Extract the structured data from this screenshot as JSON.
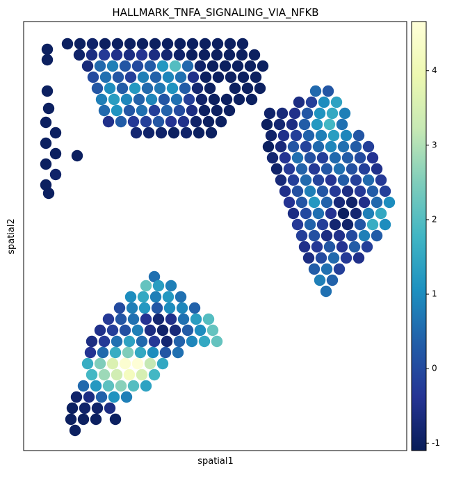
{
  "chart_data": {
    "type": "scatter",
    "title": "HALLMARK_TNFA_SIGNALING_VIA_NFKB",
    "x_label": "spatial1",
    "y_label": "spatial2",
    "xlim": [
      0,
      551
    ],
    "ylim": [
      617,
      0
    ],
    "x": [
      34,
      34,
      34,
      36,
      32,
      46,
      32,
      46,
      77,
      32,
      46,
      32,
      36,
      63,
      81,
      99,
      117,
      135,
      153,
      171,
      189,
      207,
      225,
      243,
      261,
      279,
      297,
      315,
      80,
      98,
      116,
      134,
      152,
      170,
      188,
      206,
      224,
      242,
      260,
      278,
      296,
      314,
      332,
      92,
      110,
      128,
      146,
      164,
      182,
      200,
      218,
      236,
      254,
      272,
      290,
      308,
      326,
      344,
      100,
      118,
      136,
      154,
      172,
      190,
      208,
      226,
      244,
      262,
      280,
      298,
      316,
      334,
      106,
      124,
      142,
      160,
      178,
      196,
      214,
      232,
      250,
      268,
      304,
      322,
      340,
      112,
      130,
      148,
      166,
      184,
      202,
      220,
      238,
      256,
      274,
      292,
      310,
      328,
      116,
      134,
      152,
      170,
      188,
      206,
      224,
      242,
      260,
      278,
      296,
      122,
      140,
      158,
      176,
      194,
      212,
      230,
      248,
      266,
      284,
      162,
      180,
      198,
      216,
      234,
      252,
      270,
      420,
      438,
      396,
      414,
      432,
      450,
      354,
      372,
      390,
      408,
      426,
      444,
      462,
      350,
      368,
      386,
      404,
      422,
      440,
      458,
      356,
      374,
      392,
      410,
      428,
      446,
      464,
      482,
      352,
      370,
      388,
      406,
      424,
      442,
      460,
      478,
      496,
      358,
      376,
      394,
      412,
      430,
      448,
      466,
      484,
      502,
      364,
      382,
      400,
      418,
      436,
      454,
      472,
      490,
      508,
      370,
      388,
      406,
      424,
      442,
      460,
      478,
      496,
      514,
      376,
      394,
      412,
      430,
      448,
      466,
      484,
      502,
      520,
      382,
      400,
      418,
      436,
      454,
      472,
      490,
      508,
      526,
      388,
      406,
      424,
      442,
      460,
      478,
      496,
      514,
      394,
      412,
      430,
      448,
      466,
      484,
      502,
      520,
      400,
      418,
      436,
      454,
      472,
      490,
      508,
      404,
      422,
      440,
      458,
      476,
      494,
      410,
      428,
      446,
      464,
      482,
      418,
      436,
      454,
      426,
      444,
      435,
      188,
      176,
      194,
      212,
      154,
      172,
      190,
      208,
      226,
      138,
      156,
      174,
      192,
      210,
      228,
      246,
      122,
      140,
      158,
      176,
      194,
      212,
      230,
      248,
      266,
      110,
      128,
      146,
      164,
      182,
      200,
      218,
      236,
      254,
      272,
      98,
      116,
      134,
      152,
      170,
      188,
      206,
      224,
      242,
      260,
      278,
      96,
      114,
      132,
      150,
      168,
      186,
      204,
      222,
      92,
      110,
      128,
      146,
      164,
      182,
      200,
      98,
      116,
      134,
      152,
      170,
      188,
      86,
      104,
      122,
      140,
      158,
      176,
      76,
      94,
      112,
      130,
      148,
      70,
      88,
      106,
      124,
      68,
      86,
      104,
      132,
      74
    ],
    "y": [
      40,
      55,
      100,
      125,
      145,
      160,
      175,
      190,
      193,
      205,
      220,
      235,
      247,
      32,
      32,
      32,
      32,
      32,
      32,
      32,
      32,
      32,
      32,
      32,
      32,
      32,
      32,
      32,
      48,
      48,
      48,
      48,
      48,
      48,
      48,
      48,
      48,
      48,
      48,
      48,
      48,
      48,
      48,
      64,
      64,
      64,
      64,
      64,
      64,
      64,
      64,
      64,
      64,
      64,
      64,
      64,
      64,
      64,
      80,
      80,
      80,
      80,
      80,
      80,
      80,
      80,
      80,
      80,
      80,
      80,
      80,
      80,
      96,
      96,
      96,
      96,
      96,
      96,
      96,
      96,
      96,
      96,
      96,
      96,
      96,
      112,
      112,
      112,
      112,
      112,
      112,
      112,
      112,
      112,
      112,
      112,
      112,
      112,
      128,
      128,
      128,
      128,
      128,
      128,
      128,
      128,
      128,
      128,
      128,
      144,
      144,
      144,
      144,
      144,
      144,
      144,
      144,
      144,
      144,
      160,
      160,
      160,
      160,
      160,
      160,
      160,
      100,
      100,
      116,
      116,
      116,
      116,
      132,
      132,
      132,
      132,
      132,
      132,
      132,
      148,
      148,
      148,
      148,
      148,
      148,
      148,
      164,
      164,
      164,
      164,
      164,
      164,
      164,
      164,
      180,
      180,
      180,
      180,
      180,
      180,
      180,
      180,
      180,
      196,
      196,
      196,
      196,
      196,
      196,
      196,
      196,
      196,
      212,
      212,
      212,
      212,
      212,
      212,
      212,
      212,
      212,
      228,
      228,
      228,
      228,
      228,
      228,
      228,
      228,
      228,
      244,
      244,
      244,
      244,
      244,
      244,
      244,
      244,
      244,
      260,
      260,
      260,
      260,
      260,
      260,
      260,
      260,
      260,
      276,
      276,
      276,
      276,
      276,
      276,
      276,
      276,
      292,
      292,
      292,
      292,
      292,
      292,
      292,
      292,
      308,
      308,
      308,
      308,
      308,
      308,
      308,
      324,
      324,
      324,
      324,
      324,
      324,
      340,
      340,
      340,
      340,
      340,
      356,
      356,
      356,
      372,
      372,
      388,
      367,
      380,
      380,
      380,
      396,
      396,
      396,
      396,
      396,
      412,
      412,
      412,
      412,
      412,
      412,
      412,
      428,
      428,
      428,
      428,
      428,
      428,
      428,
      428,
      428,
      444,
      444,
      444,
      444,
      444,
      444,
      444,
      444,
      444,
      444,
      460,
      460,
      460,
      460,
      460,
      460,
      460,
      460,
      460,
      460,
      460,
      476,
      476,
      476,
      476,
      476,
      476,
      476,
      476,
      492,
      492,
      492,
      492,
      492,
      492,
      492,
      508,
      508,
      508,
      508,
      508,
      508,
      524,
      524,
      524,
      524,
      524,
      524,
      540,
      540,
      540,
      540,
      540,
      556,
      556,
      556,
      556,
      572,
      572,
      572,
      572,
      588
    ],
    "values": [
      -1,
      -1,
      -1,
      -1,
      -1,
      -1,
      -1,
      -1,
      -1,
      -1,
      -0.9,
      -1,
      -1,
      -1,
      -1,
      -0.9,
      -1,
      -1,
      -1,
      -1,
      -1,
      -1,
      -1,
      -1,
      -1,
      -1,
      -1,
      -1,
      -0.9,
      -0.6,
      -0.3,
      -0.5,
      -0.6,
      -0.4,
      -0.6,
      -0.8,
      -0.9,
      -1,
      -1,
      -1,
      -1,
      -1,
      -1,
      -0.7,
      0.5,
      0.8,
      0.2,
      0,
      0.3,
      1.2,
      2,
      0.5,
      -0.9,
      -1,
      -1,
      -1,
      -1,
      -1,
      0,
      0.6,
      0.2,
      -0.2,
      0.8,
      0.4,
      0.9,
      0.6,
      -0.5,
      -1,
      -1,
      -1,
      -1,
      -1,
      0.2,
      1,
      0.3,
      1.2,
      0.5,
      0.7,
      1.1,
      0.3,
      -0.8,
      -1,
      -1,
      -1,
      -1,
      0.8,
      1.3,
      0.9,
      0.4,
      0.9,
      0.2,
      0.6,
      -0.2,
      -0.9,
      -1,
      -1,
      -1,
      -1,
      0.5,
      1.1,
      0.2,
      0.6,
      -0.2,
      0.4,
      0,
      -0.6,
      -1,
      -1,
      -1,
      -0.5,
      0.3,
      -0.3,
      -0.2,
      0.2,
      -0.4,
      -0.5,
      -0.9,
      -1,
      -1,
      -0.8,
      -0.9,
      -0.9,
      -1,
      -0.9,
      -1,
      -1,
      0.5,
      0.2,
      -0.6,
      -0.2,
      1,
      1.4,
      -0.9,
      -0.7,
      -0.5,
      0.2,
      1.1,
      1.5,
      0.8,
      -1,
      -0.8,
      -0.6,
      0.3,
      1.2,
      1.8,
      0.6,
      -0.9,
      -0.5,
      -0.2,
      0.4,
      0.8,
      1.3,
      0.9,
      0.2,
      -1,
      -0.7,
      0.2,
      -0.1,
      0.5,
      0.9,
      0.6,
      0.3,
      -0.2,
      -0.8,
      -0.4,
      0.6,
      0.1,
      -0.2,
      0.5,
      0.3,
      0,
      -0.4,
      -0.9,
      -0.3,
      0.4,
      -0.3,
      0.2,
      0.6,
      0.1,
      -0.2,
      -0.5,
      -0.7,
      -0.2,
      0.5,
      -0.1,
      -0.4,
      0.3,
      -0.2,
      0.5,
      -0.3,
      -0.5,
      0.1,
      0.8,
      0.2,
      -0.3,
      -0.6,
      -0.3,
      0.3,
      -0.2,
      -0.4,
      0.2,
      1.2,
      0.4,
      -0.7,
      -0.9,
      -0.5,
      0.5,
      1,
      -0.6,
      0,
      0.6,
      -0.4,
      -1,
      -0.8,
      0.8,
      1.5,
      -0.3,
      0.4,
      -0.2,
      -0.8,
      -0.9,
      0.2,
      1.6,
      1,
      -0.2,
      0.1,
      -0.6,
      -0.5,
      0,
      0.8,
      0.3,
      -0.5,
      -0.3,
      0.2,
      -0.4,
      0.3,
      -0.2,
      -0.6,
      0,
      0.5,
      -0.3,
      -0.5,
      0.3,
      0.6,
      -0.2,
      0.8,
      0.4,
      0.6,
      0.6,
      2.2,
      1.3,
      0.8,
      1,
      1.5,
      0.8,
      1.2,
      0.6,
      0,
      0.8,
      1.2,
      0.2,
      1,
      0.9,
      0.4,
      -0.3,
      0.2,
      0.6,
      -0.4,
      -0.8,
      -0.5,
      0.6,
      1.3,
      2,
      -0.5,
      -0.2,
      0.1,
      0.8,
      -0.6,
      -0.9,
      -0.7,
      0.3,
      1,
      2.2,
      -0.6,
      -0.3,
      0.6,
      1.4,
      0.5,
      -0.3,
      -0.8,
      0.4,
      0.9,
      1.5,
      2.2,
      -0.4,
      0.5,
      1.6,
      2.5,
      1.5,
      1,
      0.2,
      0.6,
      1.6,
      2.5,
      3.6,
      4.5,
      4.6,
      3.2,
      1.5,
      1.8,
      2.8,
      3.4,
      4.2,
      3.5,
      1.8,
      0.5,
      1.2,
      2.1,
      2.6,
      2,
      1.4,
      -0.9,
      -0.6,
      0.4,
      1.1,
      0.8,
      -1,
      -0.9,
      -0.9,
      -0.6,
      -1,
      -1,
      -1,
      -1,
      -1
    ],
    "clim": [
      -1.1,
      4.66
    ],
    "cticks": [
      -1,
      0,
      1,
      2,
      3,
      4
    ],
    "colorscale": [
      "#081d58",
      "#253494",
      "#225ea8",
      "#1d91c0",
      "#41b6c4",
      "#7fcdbb",
      "#c7e9b4",
      "#edf8b1",
      "#ffffd9"
    ]
  }
}
